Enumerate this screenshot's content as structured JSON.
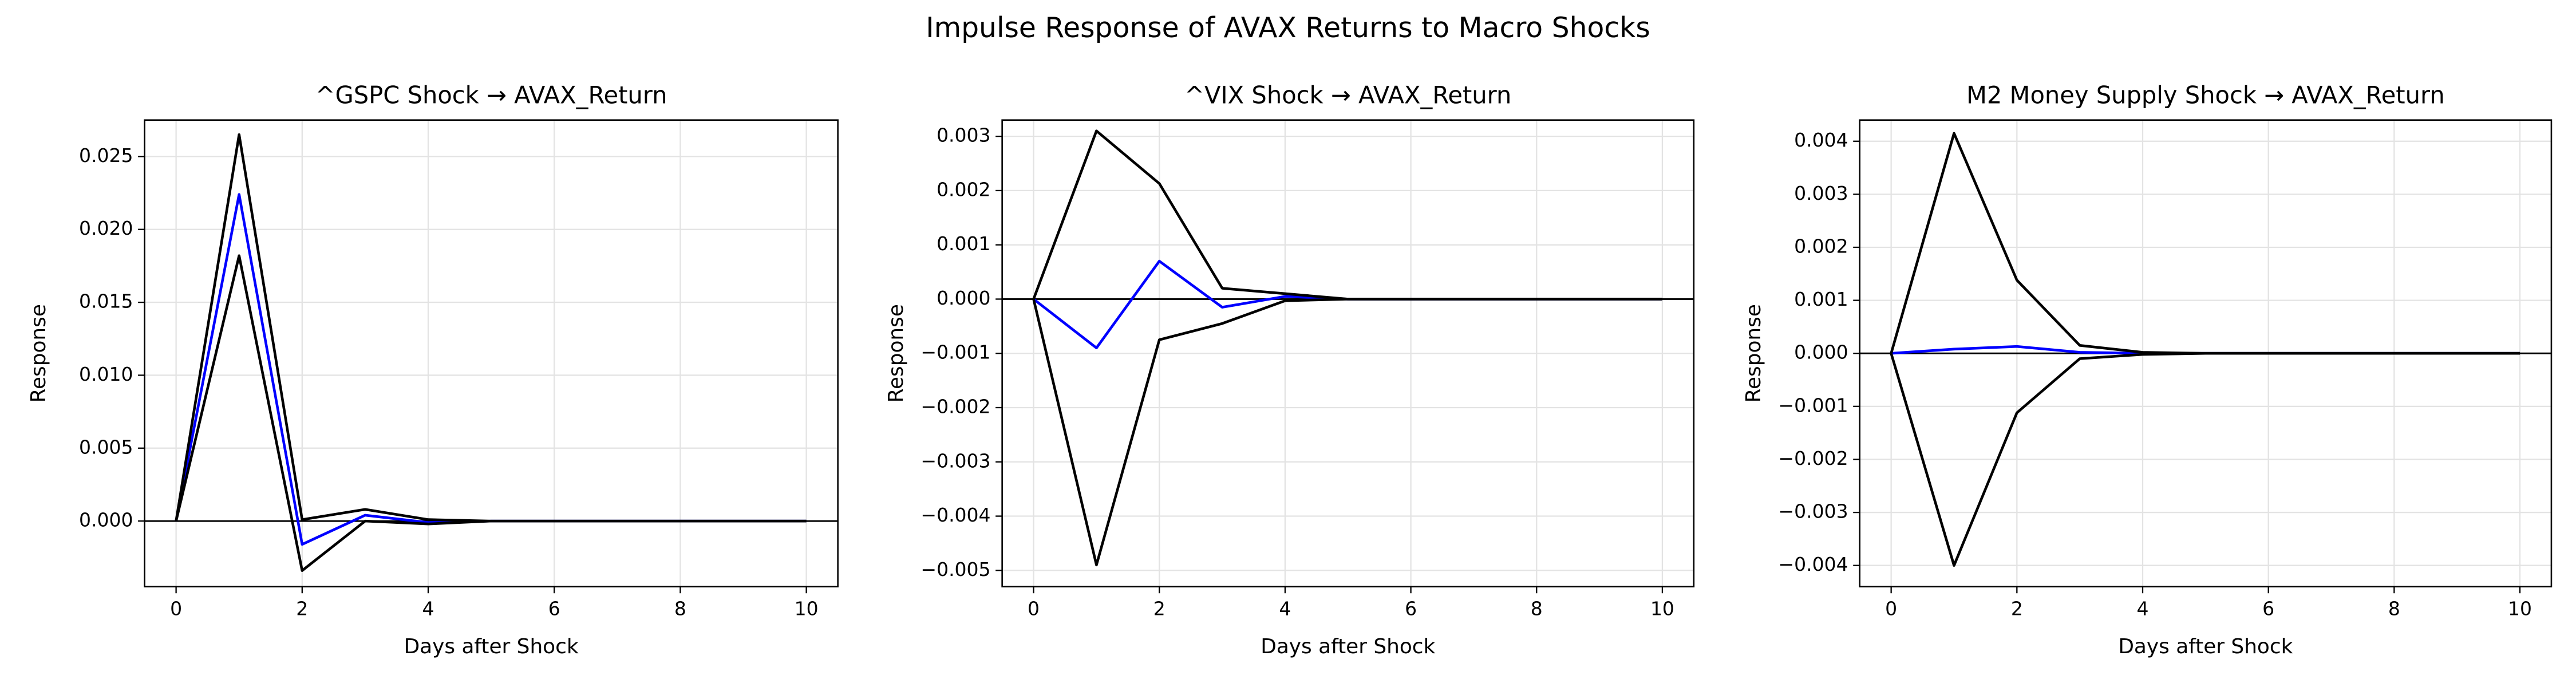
{
  "title": "Impulse Response of AVAX Returns to Macro Shocks",
  "chart_data": [
    {
      "type": "line",
      "title": "^GSPC Shock → AVAX_Return",
      "xlabel": "Days after Shock",
      "ylabel": "Response",
      "x": [
        0,
        1,
        2,
        3,
        4,
        5,
        6,
        7,
        8,
        9,
        10
      ],
      "series": [
        {
          "color": "#0000ff",
          "values": [
            0,
            0.0224,
            -0.0016,
            0.0004,
            -0.0001,
            0,
            0,
            0,
            0,
            0,
            0
          ]
        },
        {
          "color": "#000000",
          "values": [
            0,
            0.0265,
            0.0001,
            0.0008,
            0.0001,
            0,
            0,
            0,
            0,
            0,
            0
          ]
        },
        {
          "color": "#000000",
          "values": [
            0,
            0.0182,
            -0.0034,
            0.0,
            -0.0002,
            0,
            0,
            0,
            0,
            0,
            0
          ]
        }
      ],
      "hline": 0,
      "grid": true,
      "xlim": [
        -0.5,
        10.5
      ],
      "xticks": [
        0,
        2,
        4,
        6,
        8,
        10
      ],
      "ylim": [
        -0.0045,
        0.0275
      ],
      "yticks": [
        {
          "value": 0,
          "label": "0.000"
        },
        {
          "value": 0.005,
          "label": "0.005"
        },
        {
          "value": 0.01,
          "label": "0.010"
        },
        {
          "value": 0.015,
          "label": "0.015"
        },
        {
          "value": 0.02,
          "label": "0.020"
        },
        {
          "value": 0.025,
          "label": "0.025"
        }
      ]
    },
    {
      "type": "line",
      "title": "^VIX Shock → AVAX_Return",
      "xlabel": "Days after Shock",
      "ylabel": "Response",
      "x": [
        0,
        1,
        2,
        3,
        4,
        5,
        6,
        7,
        8,
        9,
        10
      ],
      "series": [
        {
          "color": "#0000ff",
          "values": [
            0,
            -0.0009,
            0.0007,
            -0.00015,
            5e-05,
            0,
            0,
            0,
            0,
            0,
            0
          ]
        },
        {
          "color": "#000000",
          "values": [
            0,
            0.0031,
            0.00213,
            0.0002,
            0.0001,
            0,
            0,
            0,
            0,
            0,
            0
          ]
        },
        {
          "color": "#000000",
          "values": [
            0,
            -0.0049,
            -0.00075,
            -0.00045,
            -3e-05,
            0,
            0,
            0,
            0,
            0,
            0
          ]
        }
      ],
      "hline": 0,
      "grid": true,
      "xlim": [
        -0.5,
        10.5
      ],
      "xticks": [
        0,
        2,
        4,
        6,
        8,
        10
      ],
      "ylim": [
        -0.0053,
        0.0033
      ],
      "yticks": [
        {
          "value": -0.005,
          "label": "−0.005"
        },
        {
          "value": -0.004,
          "label": "−0.004"
        },
        {
          "value": -0.003,
          "label": "−0.003"
        },
        {
          "value": -0.002,
          "label": "−0.002"
        },
        {
          "value": -0.001,
          "label": "−0.001"
        },
        {
          "value": 0,
          "label": "0.000"
        },
        {
          "value": 0.001,
          "label": "0.001"
        },
        {
          "value": 0.002,
          "label": "0.002"
        },
        {
          "value": 0.003,
          "label": "0.003"
        }
      ]
    },
    {
      "type": "line",
      "title": "M2 Money Supply Shock → AVAX_Return",
      "xlabel": "Days after Shock",
      "ylabel": "Response",
      "x": [
        0,
        1,
        2,
        3,
        4,
        5,
        6,
        7,
        8,
        9,
        10
      ],
      "series": [
        {
          "color": "#0000ff",
          "values": [
            0,
            8e-05,
            0.00013,
            2e-05,
            0,
            0,
            0,
            0,
            0,
            0,
            0
          ]
        },
        {
          "color": "#000000",
          "values": [
            0,
            0.00415,
            0.00138,
            0.00015,
            2e-05,
            0,
            0,
            0,
            0,
            0,
            0
          ]
        },
        {
          "color": "#000000",
          "values": [
            0,
            -0.004,
            -0.00112,
            -0.0001,
            -2e-05,
            0,
            0,
            0,
            0,
            0,
            0
          ]
        }
      ],
      "hline": 0,
      "grid": true,
      "xlim": [
        -0.5,
        10.5
      ],
      "xticks": [
        0,
        2,
        4,
        6,
        8,
        10
      ],
      "ylim": [
        -0.0044,
        0.0044
      ],
      "yticks": [
        {
          "value": -0.004,
          "label": "−0.004"
        },
        {
          "value": -0.003,
          "label": "−0.003"
        },
        {
          "value": -0.002,
          "label": "−0.002"
        },
        {
          "value": -0.001,
          "label": "−0.001"
        },
        {
          "value": 0,
          "label": "0.000"
        },
        {
          "value": 0.001,
          "label": "0.001"
        },
        {
          "value": 0.002,
          "label": "0.002"
        },
        {
          "value": 0.003,
          "label": "0.003"
        },
        {
          "value": 0.004,
          "label": "0.004"
        }
      ]
    }
  ]
}
